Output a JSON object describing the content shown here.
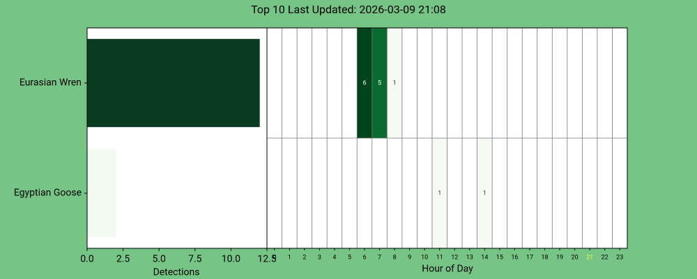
{
  "title": "Top 10 Last Updated: 2026-03-09 21:08",
  "chart_data": [
    {
      "type": "bar",
      "orientation": "horizontal",
      "categories": [
        "Eurasian Wren",
        "Egyptian Goose"
      ],
      "values": [
        12,
        2
      ],
      "colors": [
        "#0a3a1f",
        "#f3faf1"
      ],
      "xlim": [
        0,
        12.5
      ],
      "xticks": [
        {
          "value": 0,
          "label": "0.0"
        },
        2.5,
        {
          "value": 5,
          "label": "5.0"
        },
        7.5,
        {
          "value": 10,
          "label": "10.0"
        },
        12.5
      ],
      "xlabel": "Detections"
    },
    {
      "type": "heatmap",
      "categories": [
        "0",
        "1",
        "2",
        "3",
        "4",
        "5",
        "6",
        "7",
        "8",
        "9",
        "10",
        "11",
        "12",
        "13",
        "14",
        "15",
        "16",
        "17",
        "18",
        "19",
        "20",
        "21",
        "22",
        "23"
      ],
      "values": [
        [
          null,
          null,
          null,
          null,
          null,
          null,
          6,
          5,
          1,
          null,
          null,
          null,
          null,
          null,
          null,
          null,
          null,
          null,
          null,
          null,
          null,
          null,
          null,
          null
        ],
        [
          null,
          null,
          null,
          null,
          null,
          null,
          null,
          null,
          null,
          null,
          null,
          1,
          null,
          null,
          1,
          null,
          null,
          null,
          null,
          null,
          null,
          null,
          null,
          null
        ]
      ],
      "colors": [
        [
          null,
          null,
          null,
          null,
          null,
          null,
          "#00441b",
          "#0a6b30",
          "#f5fbf3",
          null,
          null,
          null,
          null,
          null,
          null,
          null,
          null,
          null,
          null,
          null,
          null,
          null,
          null,
          null
        ],
        [
          null,
          null,
          null,
          null,
          null,
          null,
          null,
          null,
          null,
          null,
          null,
          "#f5fbf3",
          null,
          null,
          "#f5fbf3",
          null,
          null,
          null,
          null,
          null,
          null,
          null,
          null,
          null
        ]
      ],
      "highlight": "21",
      "highlight_color": "#e6ff3a",
      "xlabel": "Hour of Day"
    }
  ]
}
